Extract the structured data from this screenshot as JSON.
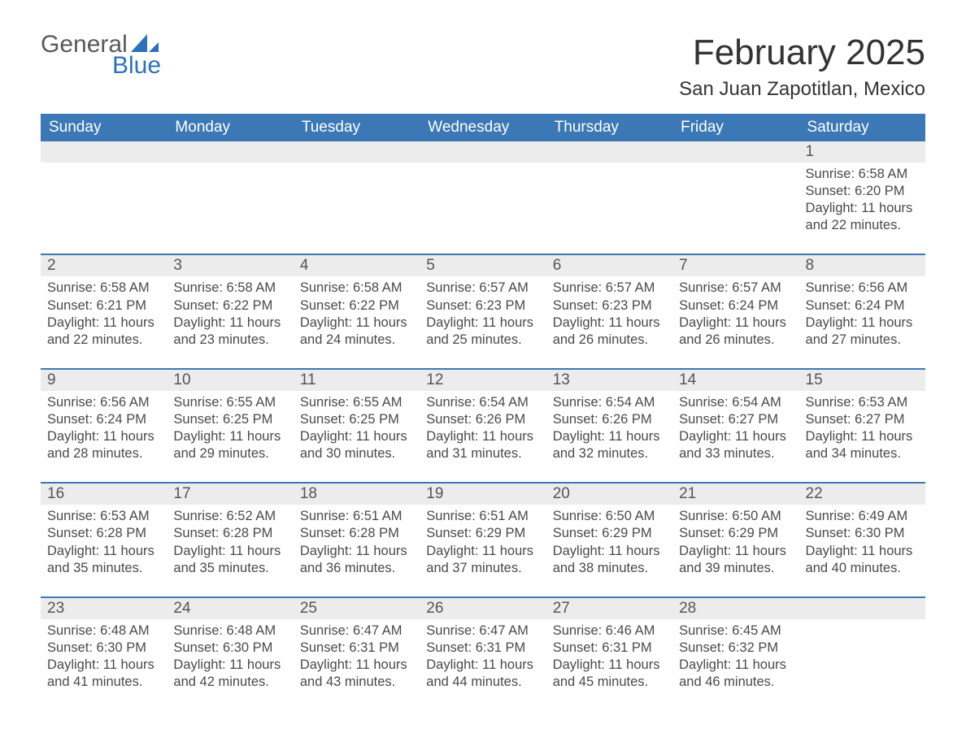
{
  "logo": {
    "text_general": "General",
    "text_blue": "Blue"
  },
  "title": "February 2025",
  "location": "San Juan Zapotitlan, Mexico",
  "colors": {
    "header_blue": "#3b78b5",
    "day_header_bg": "#ececec",
    "logo_gray": "#595959",
    "logo_blue": "#2d72b8",
    "background": "#ffffff"
  },
  "days_of_week": [
    "Sunday",
    "Monday",
    "Tuesday",
    "Wednesday",
    "Thursday",
    "Friday",
    "Saturday"
  ],
  "weeks": [
    [
      {
        "n": "",
        "sunrise": "",
        "sunset": "",
        "daylight": ""
      },
      {
        "n": "",
        "sunrise": "",
        "sunset": "",
        "daylight": ""
      },
      {
        "n": "",
        "sunrise": "",
        "sunset": "",
        "daylight": ""
      },
      {
        "n": "",
        "sunrise": "",
        "sunset": "",
        "daylight": ""
      },
      {
        "n": "",
        "sunrise": "",
        "sunset": "",
        "daylight": ""
      },
      {
        "n": "",
        "sunrise": "",
        "sunset": "",
        "daylight": ""
      },
      {
        "n": "1",
        "sunrise": "Sunrise: 6:58 AM",
        "sunset": "Sunset: 6:20 PM",
        "daylight": "Daylight: 11 hours and 22 minutes."
      }
    ],
    [
      {
        "n": "2",
        "sunrise": "Sunrise: 6:58 AM",
        "sunset": "Sunset: 6:21 PM",
        "daylight": "Daylight: 11 hours and 22 minutes."
      },
      {
        "n": "3",
        "sunrise": "Sunrise: 6:58 AM",
        "sunset": "Sunset: 6:22 PM",
        "daylight": "Daylight: 11 hours and 23 minutes."
      },
      {
        "n": "4",
        "sunrise": "Sunrise: 6:58 AM",
        "sunset": "Sunset: 6:22 PM",
        "daylight": "Daylight: 11 hours and 24 minutes."
      },
      {
        "n": "5",
        "sunrise": "Sunrise: 6:57 AM",
        "sunset": "Sunset: 6:23 PM",
        "daylight": "Daylight: 11 hours and 25 minutes."
      },
      {
        "n": "6",
        "sunrise": "Sunrise: 6:57 AM",
        "sunset": "Sunset: 6:23 PM",
        "daylight": "Daylight: 11 hours and 26 minutes."
      },
      {
        "n": "7",
        "sunrise": "Sunrise: 6:57 AM",
        "sunset": "Sunset: 6:24 PM",
        "daylight": "Daylight: 11 hours and 26 minutes."
      },
      {
        "n": "8",
        "sunrise": "Sunrise: 6:56 AM",
        "sunset": "Sunset: 6:24 PM",
        "daylight": "Daylight: 11 hours and 27 minutes."
      }
    ],
    [
      {
        "n": "9",
        "sunrise": "Sunrise: 6:56 AM",
        "sunset": "Sunset: 6:24 PM",
        "daylight": "Daylight: 11 hours and 28 minutes."
      },
      {
        "n": "10",
        "sunrise": "Sunrise: 6:55 AM",
        "sunset": "Sunset: 6:25 PM",
        "daylight": "Daylight: 11 hours and 29 minutes."
      },
      {
        "n": "11",
        "sunrise": "Sunrise: 6:55 AM",
        "sunset": "Sunset: 6:25 PM",
        "daylight": "Daylight: 11 hours and 30 minutes."
      },
      {
        "n": "12",
        "sunrise": "Sunrise: 6:54 AM",
        "sunset": "Sunset: 6:26 PM",
        "daylight": "Daylight: 11 hours and 31 minutes."
      },
      {
        "n": "13",
        "sunrise": "Sunrise: 6:54 AM",
        "sunset": "Sunset: 6:26 PM",
        "daylight": "Daylight: 11 hours and 32 minutes."
      },
      {
        "n": "14",
        "sunrise": "Sunrise: 6:54 AM",
        "sunset": "Sunset: 6:27 PM",
        "daylight": "Daylight: 11 hours and 33 minutes."
      },
      {
        "n": "15",
        "sunrise": "Sunrise: 6:53 AM",
        "sunset": "Sunset: 6:27 PM",
        "daylight": "Daylight: 11 hours and 34 minutes."
      }
    ],
    [
      {
        "n": "16",
        "sunrise": "Sunrise: 6:53 AM",
        "sunset": "Sunset: 6:28 PM",
        "daylight": "Daylight: 11 hours and 35 minutes."
      },
      {
        "n": "17",
        "sunrise": "Sunrise: 6:52 AM",
        "sunset": "Sunset: 6:28 PM",
        "daylight": "Daylight: 11 hours and 35 minutes."
      },
      {
        "n": "18",
        "sunrise": "Sunrise: 6:51 AM",
        "sunset": "Sunset: 6:28 PM",
        "daylight": "Daylight: 11 hours and 36 minutes."
      },
      {
        "n": "19",
        "sunrise": "Sunrise: 6:51 AM",
        "sunset": "Sunset: 6:29 PM",
        "daylight": "Daylight: 11 hours and 37 minutes."
      },
      {
        "n": "20",
        "sunrise": "Sunrise: 6:50 AM",
        "sunset": "Sunset: 6:29 PM",
        "daylight": "Daylight: 11 hours and 38 minutes."
      },
      {
        "n": "21",
        "sunrise": "Sunrise: 6:50 AM",
        "sunset": "Sunset: 6:29 PM",
        "daylight": "Daylight: 11 hours and 39 minutes."
      },
      {
        "n": "22",
        "sunrise": "Sunrise: 6:49 AM",
        "sunset": "Sunset: 6:30 PM",
        "daylight": "Daylight: 11 hours and 40 minutes."
      }
    ],
    [
      {
        "n": "23",
        "sunrise": "Sunrise: 6:48 AM",
        "sunset": "Sunset: 6:30 PM",
        "daylight": "Daylight: 11 hours and 41 minutes."
      },
      {
        "n": "24",
        "sunrise": "Sunrise: 6:48 AM",
        "sunset": "Sunset: 6:30 PM",
        "daylight": "Daylight: 11 hours and 42 minutes."
      },
      {
        "n": "25",
        "sunrise": "Sunrise: 6:47 AM",
        "sunset": "Sunset: 6:31 PM",
        "daylight": "Daylight: 11 hours and 43 minutes."
      },
      {
        "n": "26",
        "sunrise": "Sunrise: 6:47 AM",
        "sunset": "Sunset: 6:31 PM",
        "daylight": "Daylight: 11 hours and 44 minutes."
      },
      {
        "n": "27",
        "sunrise": "Sunrise: 6:46 AM",
        "sunset": "Sunset: 6:31 PM",
        "daylight": "Daylight: 11 hours and 45 minutes."
      },
      {
        "n": "28",
        "sunrise": "Sunrise: 6:45 AM",
        "sunset": "Sunset: 6:32 PM",
        "daylight": "Daylight: 11 hours and 46 minutes."
      },
      {
        "n": "",
        "sunrise": "",
        "sunset": "",
        "daylight": ""
      }
    ]
  ]
}
